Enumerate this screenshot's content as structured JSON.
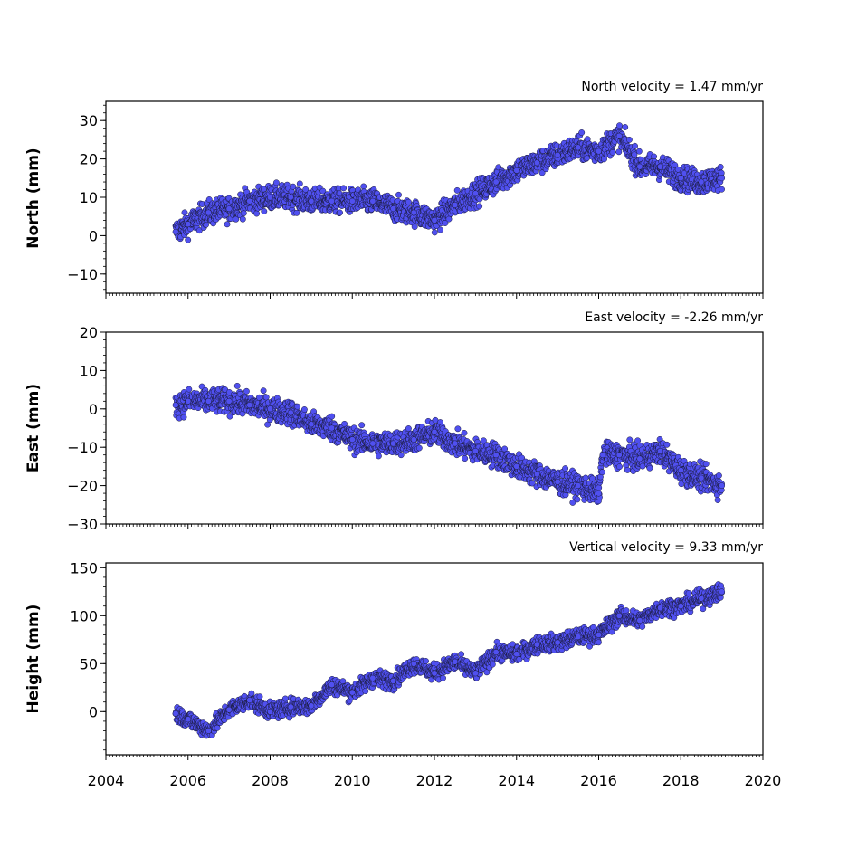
{
  "colors": {
    "marker_fill": "#5050f0",
    "marker_edge": "#1a1a3a",
    "axis": "#000000"
  },
  "x_tick_labels": [
    "2004",
    "2006",
    "2008",
    "2010",
    "2012",
    "2014",
    "2016",
    "2018",
    "2020"
  ],
  "chart_data": [
    {
      "type": "scatter",
      "velocity_label": "North velocity = 1.47 mm/yr",
      "xlabel": "",
      "ylabel": "North (mm)",
      "xlim": [
        2004,
        2020
      ],
      "ylim": [
        -15,
        35
      ],
      "y_ticks": [
        -10,
        0,
        10,
        20,
        30
      ],
      "y_tick_labels": [
        "−10",
        "0",
        "10",
        "20",
        "30"
      ],
      "grid": false,
      "series": [
        {
          "x": [
            2005.7,
            2006.0,
            2006.5,
            2007.0,
            2007.5,
            2008.0,
            2008.5,
            2009.0,
            2009.5,
            2010.0,
            2010.5,
            2011.0,
            2011.5,
            2012.0,
            2012.5,
            2013.0,
            2013.5,
            2014.0,
            2014.5,
            2015.0,
            2015.5,
            2016.0,
            2016.5,
            2017.0,
            2017.5,
            2018.0,
            2018.5,
            2019.0
          ],
          "values": [
            1,
            3,
            6,
            7,
            9,
            10,
            10,
            9,
            9,
            9,
            9,
            7,
            6,
            4,
            8,
            11,
            14,
            17,
            19,
            21,
            23,
            22,
            26,
            18,
            18,
            15,
            14,
            15
          ]
        }
      ]
    },
    {
      "type": "scatter",
      "velocity_label": "East velocity = -2.26 mm/yr",
      "xlabel": "",
      "ylabel": "East (mm)",
      "xlim": [
        2004,
        2020
      ],
      "ylim": [
        -30,
        20
      ],
      "y_ticks": [
        -30,
        -20,
        -10,
        0,
        10,
        20
      ],
      "y_tick_labels": [
        "−30",
        "−20",
        "−10",
        "0",
        "10",
        "20"
      ],
      "grid": false,
      "series": [
        {
          "x": [
            2005.7,
            2006.0,
            2006.5,
            2007.0,
            2007.5,
            2008.0,
            2008.5,
            2009.0,
            2009.5,
            2010.0,
            2010.5,
            2011.0,
            2011.5,
            2012.0,
            2012.5,
            2013.0,
            2013.5,
            2014.0,
            2014.5,
            2015.0,
            2015.5,
            2016.0,
            2016.1,
            2016.5,
            2017.0,
            2017.5,
            2018.0,
            2018.5,
            2019.0
          ],
          "values": [
            1,
            2,
            2,
            2,
            1,
            0,
            -1,
            -4,
            -5,
            -8,
            -9,
            -9,
            -8,
            -6,
            -9,
            -11,
            -12,
            -15,
            -17,
            -19,
            -20,
            -22,
            -12,
            -12,
            -13,
            -11,
            -16,
            -18,
            -20
          ]
        }
      ]
    },
    {
      "type": "scatter",
      "velocity_label": "Vertical velocity = 9.33 mm/yr",
      "xlabel": "",
      "ylabel": "Height (mm)",
      "xlim": [
        2004,
        2020
      ],
      "ylim": [
        -45,
        155
      ],
      "y_ticks": [
        0,
        50,
        100,
        150
      ],
      "y_tick_labels": [
        "0",
        "50",
        "100",
        "150"
      ],
      "grid": false,
      "series": [
        {
          "x": [
            2005.7,
            2006.0,
            2006.5,
            2007.0,
            2007.5,
            2008.0,
            2008.5,
            2009.0,
            2009.5,
            2010.0,
            2010.5,
            2011.0,
            2011.5,
            2012.0,
            2012.5,
            2013.0,
            2013.5,
            2014.0,
            2014.5,
            2015.0,
            2015.5,
            2016.0,
            2016.5,
            2017.0,
            2017.5,
            2018.0,
            2018.5,
            2019.0
          ],
          "values": [
            -2,
            -8,
            -20,
            2,
            12,
            0,
            5,
            6,
            28,
            20,
            35,
            32,
            50,
            40,
            52,
            40,
            62,
            60,
            70,
            72,
            78,
            80,
            100,
            95,
            108,
            110,
            118,
            125
          ]
        }
      ]
    }
  ]
}
